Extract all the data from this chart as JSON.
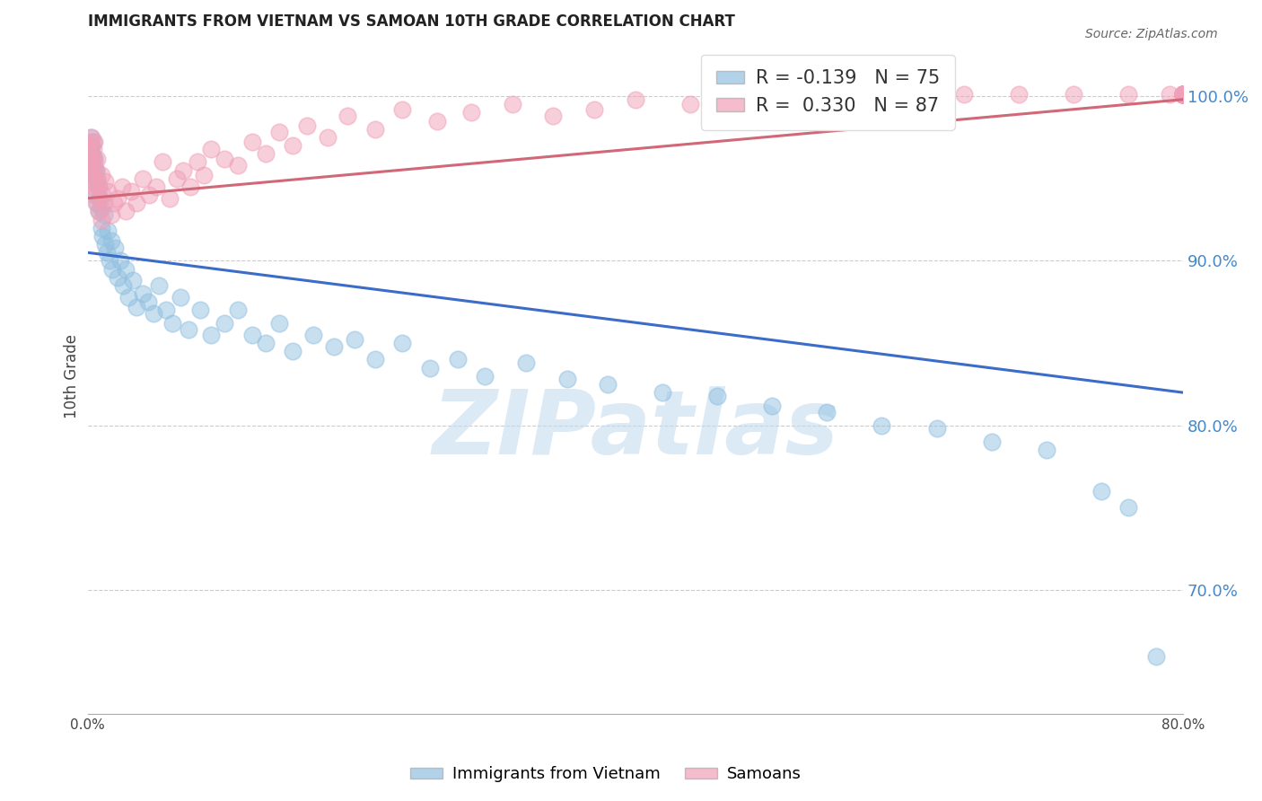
{
  "title": "IMMIGRANTS FROM VIETNAM VS SAMOAN 10TH GRADE CORRELATION CHART",
  "source": "Source: ZipAtlas.com",
  "ylabel": "10th Grade",
  "xlim": [
    0.0,
    0.8
  ],
  "ylim": [
    0.625,
    1.035
  ],
  "xticks": [
    0.0,
    0.1,
    0.2,
    0.3,
    0.4,
    0.5,
    0.6,
    0.7,
    0.8
  ],
  "xticklabels": [
    "0.0%",
    "",
    "",
    "",
    "",
    "",
    "",
    "",
    "80.0%"
  ],
  "yticks_right": [
    0.7,
    0.8,
    0.9,
    1.0
  ],
  "ytick_right_labels": [
    "70.0%",
    "80.0%",
    "90.0%",
    "100.0%"
  ],
  "legend_text": [
    "R = -0.139   N = 75",
    "R =  0.330   N = 87"
  ],
  "blue_color": "#92C0E0",
  "pink_color": "#F0A0B8",
  "blue_line_color": "#3B6CC8",
  "pink_line_color": "#D06878",
  "grid_color": "#CCCCCC",
  "right_axis_color": "#4488CC",
  "watermark": "ZIPatlas",
  "blue_scatter_x": [
    0.001,
    0.002,
    0.002,
    0.003,
    0.003,
    0.003,
    0.004,
    0.004,
    0.004,
    0.005,
    0.005,
    0.005,
    0.006,
    0.006,
    0.007,
    0.007,
    0.008,
    0.008,
    0.009,
    0.01,
    0.01,
    0.011,
    0.012,
    0.013,
    0.014,
    0.015,
    0.016,
    0.017,
    0.018,
    0.02,
    0.022,
    0.024,
    0.026,
    0.028,
    0.03,
    0.033,
    0.036,
    0.04,
    0.044,
    0.048,
    0.052,
    0.057,
    0.062,
    0.068,
    0.074,
    0.082,
    0.09,
    0.1,
    0.11,
    0.12,
    0.13,
    0.14,
    0.15,
    0.165,
    0.18,
    0.195,
    0.21,
    0.23,
    0.25,
    0.27,
    0.29,
    0.32,
    0.35,
    0.38,
    0.42,
    0.46,
    0.5,
    0.54,
    0.58,
    0.62,
    0.66,
    0.7,
    0.74,
    0.76,
    0.78
  ],
  "blue_scatter_y": [
    0.96,
    0.968,
    0.975,
    0.952,
    0.965,
    0.97,
    0.958,
    0.972,
    0.963,
    0.955,
    0.948,
    0.962,
    0.94,
    0.955,
    0.935,
    0.95,
    0.945,
    0.93,
    0.938,
    0.92,
    0.932,
    0.915,
    0.928,
    0.91,
    0.905,
    0.918,
    0.9,
    0.912,
    0.895,
    0.908,
    0.89,
    0.9,
    0.885,
    0.895,
    0.878,
    0.888,
    0.872,
    0.88,
    0.875,
    0.868,
    0.885,
    0.87,
    0.862,
    0.878,
    0.858,
    0.87,
    0.855,
    0.862,
    0.87,
    0.855,
    0.85,
    0.862,
    0.845,
    0.855,
    0.848,
    0.852,
    0.84,
    0.85,
    0.835,
    0.84,
    0.83,
    0.838,
    0.828,
    0.825,
    0.82,
    0.818,
    0.812,
    0.808,
    0.8,
    0.798,
    0.79,
    0.785,
    0.76,
    0.75,
    0.66
  ],
  "pink_scatter_x": [
    0.001,
    0.001,
    0.002,
    0.002,
    0.002,
    0.003,
    0.003,
    0.003,
    0.003,
    0.004,
    0.004,
    0.004,
    0.005,
    0.005,
    0.005,
    0.006,
    0.006,
    0.007,
    0.007,
    0.008,
    0.008,
    0.009,
    0.01,
    0.01,
    0.011,
    0.012,
    0.013,
    0.015,
    0.017,
    0.019,
    0.022,
    0.025,
    0.028,
    0.032,
    0.036,
    0.04,
    0.045,
    0.05,
    0.055,
    0.06,
    0.065,
    0.07,
    0.075,
    0.08,
    0.085,
    0.09,
    0.1,
    0.11,
    0.12,
    0.13,
    0.14,
    0.15,
    0.16,
    0.175,
    0.19,
    0.21,
    0.23,
    0.255,
    0.28,
    0.31,
    0.34,
    0.37,
    0.4,
    0.44,
    0.48,
    0.52,
    0.56,
    0.6,
    0.64,
    0.68,
    0.72,
    0.76,
    0.79,
    0.8,
    0.8,
    0.8,
    0.8,
    0.8,
    0.8,
    0.8,
    0.8,
    0.8,
    0.8,
    0.8,
    0.8,
    0.8,
    0.8
  ],
  "pink_scatter_y": [
    0.96,
    0.97,
    0.955,
    0.972,
    0.965,
    0.948,
    0.962,
    0.975,
    0.958,
    0.952,
    0.968,
    0.945,
    0.96,
    0.94,
    0.972,
    0.935,
    0.955,
    0.948,
    0.962,
    0.93,
    0.945,
    0.938,
    0.952,
    0.925,
    0.94,
    0.935,
    0.948,
    0.942,
    0.928,
    0.935,
    0.938,
    0.945,
    0.93,
    0.942,
    0.935,
    0.95,
    0.94,
    0.945,
    0.96,
    0.938,
    0.95,
    0.955,
    0.945,
    0.96,
    0.952,
    0.968,
    0.962,
    0.958,
    0.972,
    0.965,
    0.978,
    0.97,
    0.982,
    0.975,
    0.988,
    0.98,
    0.992,
    0.985,
    0.99,
    0.995,
    0.988,
    0.992,
    0.998,
    0.995,
    1.0,
    0.998,
    1.001,
    1.001,
    1.001,
    1.001,
    1.001,
    1.001,
    1.001,
    1.001,
    1.001,
    1.001,
    1.001,
    1.001,
    1.001,
    1.001,
    1.001,
    1.001,
    1.001,
    1.001,
    1.001,
    1.001,
    1.001
  ],
  "blue_trend_x": [
    0.0,
    0.8
  ],
  "blue_trend_y": [
    0.905,
    0.82
  ],
  "pink_trend_x": [
    0.0,
    0.8
  ],
  "pink_trend_y": [
    0.938,
    0.998
  ]
}
